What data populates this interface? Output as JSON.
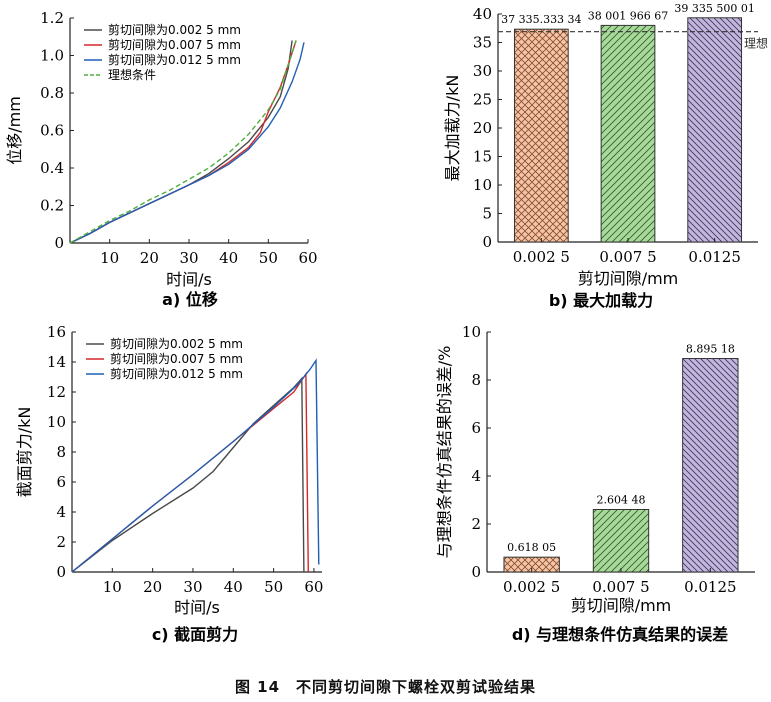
{
  "figure_caption": "图 14　不同剪切间隙下螺栓双剪试验结果",
  "chart_data": [
    {
      "type": "line",
      "caption": "a) 位移",
      "xlabel": "时间/s",
      "ylabel": "位移/mm",
      "xlim": [
        0,
        60
      ],
      "ylim": [
        0,
        1.2
      ],
      "x_ticks": [
        "10",
        "20",
        "30",
        "40",
        "50",
        "60"
      ],
      "y_ticks": [
        "0",
        "0.2",
        "0.4",
        "0.6",
        "0.8",
        "1.0",
        "1.2"
      ],
      "legend": "top-left",
      "series": [
        {
          "name": "剪切间隙为0.002 5 mm",
          "color": "#4a4a4a",
          "dash": false,
          "points": [
            [
              0,
              0
            ],
            [
              5,
              0.05
            ],
            [
              10,
              0.11
            ],
            [
              15,
              0.16
            ],
            [
              20,
              0.21
            ],
            [
              25,
              0.26
            ],
            [
              30,
              0.31
            ],
            [
              35,
              0.37
            ],
            [
              40,
              0.45
            ],
            [
              45,
              0.54
            ],
            [
              50,
              0.67
            ],
            [
              53,
              0.78
            ],
            [
              55,
              0.93
            ],
            [
              56,
              1.08
            ]
          ]
        },
        {
          "name": "剪切间隙为0.007 5 mm",
          "color": "#d62728",
          "dash": false,
          "points": [
            [
              0,
              0
            ],
            [
              5,
              0.05
            ],
            [
              10,
              0.11
            ],
            [
              15,
              0.16
            ],
            [
              20,
              0.21
            ],
            [
              25,
              0.26
            ],
            [
              30,
              0.31
            ],
            [
              35,
              0.36
            ],
            [
              40,
              0.43
            ],
            [
              45,
              0.51
            ],
            [
              48,
              0.59
            ],
            [
              50,
              0.7
            ],
            [
              53,
              0.83
            ],
            [
              55,
              0.95
            ],
            [
              57,
              1.08
            ]
          ]
        },
        {
          "name": "剪切间隙为0.012 5 mm",
          "color": "#1f5fb4",
          "dash": false,
          "points": [
            [
              0,
              0
            ],
            [
              5,
              0.05
            ],
            [
              10,
              0.11
            ],
            [
              15,
              0.16
            ],
            [
              20,
              0.21
            ],
            [
              25,
              0.26
            ],
            [
              30,
              0.31
            ],
            [
              35,
              0.36
            ],
            [
              40,
              0.42
            ],
            [
              45,
              0.5
            ],
            [
              50,
              0.62
            ],
            [
              53,
              0.72
            ],
            [
              56,
              0.86
            ],
            [
              58,
              0.98
            ],
            [
              59,
              1.07
            ]
          ]
        },
        {
          "name": "理想条件",
          "color": "#4caf3a",
          "dash": true,
          "points": [
            [
              0,
              0
            ],
            [
              5,
              0.06
            ],
            [
              10,
              0.12
            ],
            [
              15,
              0.17
            ],
            [
              20,
              0.23
            ],
            [
              25,
              0.28
            ],
            [
              30,
              0.34
            ],
            [
              35,
              0.4
            ],
            [
              40,
              0.48
            ],
            [
              45,
              0.58
            ],
            [
              50,
              0.71
            ],
            [
              53,
              0.82
            ],
            [
              55,
              0.95
            ],
            [
              57,
              1.08
            ]
          ]
        }
      ]
    },
    {
      "type": "bar",
      "caption": "b) 最大加载力",
      "xlabel": "剪切间隙/mm",
      "ylabel": "最大加载力/kN",
      "ylim": [
        0,
        40
      ],
      "y_ticks": [
        "0",
        "5",
        "10",
        "15",
        "20",
        "25",
        "30",
        "35",
        "40"
      ],
      "categories": [
        "0.002 5",
        "0.007 5",
        "0.0125"
      ],
      "values": [
        37.33533334,
        38.00196667,
        39.33550001
      ],
      "data_labels": [
        "37 335.333 34",
        "38 001 966 67",
        "39 335 500 01"
      ],
      "bar_colors": [
        "#f4c6a8",
        "#a8d89a",
        "#c3b5db"
      ],
      "reference_value": 36.9,
      "reference_label": "理想"
    },
    {
      "type": "line",
      "caption": "c) 截面剪力",
      "xlabel": "时间/s",
      "ylabel": "截面剪力/kN",
      "xlim": [
        0,
        62
      ],
      "ylim": [
        0,
        16
      ],
      "x_ticks": [
        "10",
        "20",
        "30",
        "40",
        "50",
        "60"
      ],
      "y_ticks": [
        "0",
        "2",
        "4",
        "6",
        "8",
        "10",
        "12",
        "14",
        "16"
      ],
      "legend": "top-left",
      "series": [
        {
          "name": "剪切间隙为0.002 5 mm",
          "color": "#4a4a4a",
          "dash": false,
          "points": [
            [
              0,
              0
            ],
            [
              10,
              2.1
            ],
            [
              20,
              3.9
            ],
            [
              30,
              5.6
            ],
            [
              35,
              6.7
            ],
            [
              40,
              8.3
            ],
            [
              45,
              9.9
            ],
            [
              50,
              11.1
            ],
            [
              55,
              12.3
            ],
            [
              57,
              12.9
            ],
            [
              57.5,
              0
            ]
          ]
        },
        {
          "name": "剪切间隙为0.007 5 mm",
          "color": "#d62728",
          "dash": false,
          "points": [
            [
              0,
              0
            ],
            [
              10,
              2.2
            ],
            [
              20,
              4.4
            ],
            [
              30,
              6.5
            ],
            [
              40,
              8.7
            ],
            [
              50,
              10.9
            ],
            [
              55,
              12.0
            ],
            [
              58,
              13.2
            ],
            [
              58.6,
              0
            ]
          ]
        },
        {
          "name": "剪切间隙为0.012 5 mm",
          "color": "#1f5fb4",
          "dash": false,
          "points": [
            [
              0,
              0
            ],
            [
              10,
              2.2
            ],
            [
              20,
              4.4
            ],
            [
              30,
              6.5
            ],
            [
              40,
              8.7
            ],
            [
              50,
              11.0
            ],
            [
              56,
              12.5
            ],
            [
              59,
              13.5
            ],
            [
              60.5,
              14.1
            ],
            [
              61.2,
              0.5
            ]
          ]
        }
      ]
    },
    {
      "type": "bar",
      "caption": "d) 与理想条件仿真结果的误差",
      "xlabel": "剪切间隙/mm",
      "ylabel": "与理想条件仿真结果的误差/%",
      "ylim": [
        0,
        10
      ],
      "y_ticks": [
        "0",
        "2",
        "4",
        "6",
        "8",
        "10"
      ],
      "categories": [
        "0.002 5",
        "0.007 5",
        "0.0125"
      ],
      "values": [
        0.61805,
        2.60448,
        8.89518
      ],
      "data_labels": [
        "0.618 05",
        "2.604 48",
        "8.895 18"
      ],
      "bar_colors": [
        "#f4c6a8",
        "#a8d89a",
        "#c3b5db"
      ]
    }
  ]
}
